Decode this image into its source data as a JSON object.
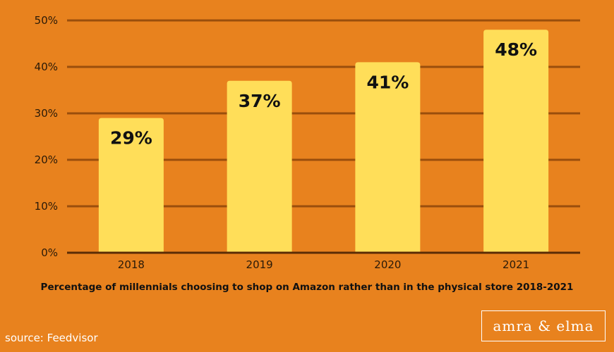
{
  "chart_data": {
    "type": "bar",
    "categories": [
      "2018",
      "2019",
      "2020",
      "2021"
    ],
    "values": [
      29,
      37,
      41,
      48
    ],
    "value_labels": [
      "29%",
      "37%",
      "41%",
      "48%"
    ],
    "y_ticks": [
      "0%",
      "10%",
      "20%",
      "30%",
      "40%",
      "50%"
    ],
    "ylim": [
      0,
      50
    ],
    "grid": true,
    "bar_color": "#FFDE59",
    "grid_color": "#9A4E0C",
    "background_color": "#E8821E"
  },
  "caption": "Percentage of millennials choosing to shop on Amazon rather than in the physical store 2018-2021",
  "source": "source: Feedvisor",
  "logo_text": "amra & elma"
}
